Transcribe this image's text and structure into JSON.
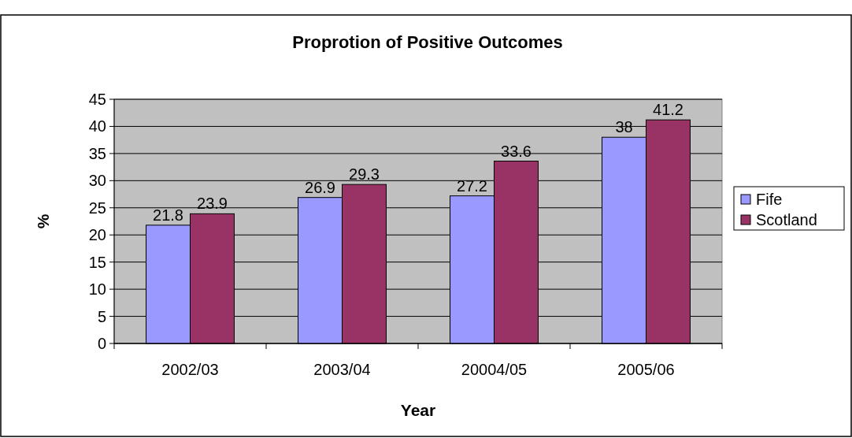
{
  "chart_data": {
    "type": "bar",
    "title": "Proprotion of Positive Outcomes",
    "xlabel": "Year",
    "ylabel": "%",
    "categories": [
      "2002/03",
      "2003/04",
      "20004/05",
      "2005/06"
    ],
    "series": [
      {
        "name": "Fife",
        "color": "#9999ff",
        "values": [
          21.8,
          26.9,
          27.2,
          38
        ]
      },
      {
        "name": "Scotland",
        "color": "#993366",
        "values": [
          23.9,
          29.3,
          33.6,
          41.2
        ]
      }
    ],
    "ylim": [
      0,
      45
    ],
    "yticks": [
      0,
      5,
      10,
      15,
      20,
      25,
      30,
      35,
      40,
      45
    ],
    "grid": "y",
    "legend": "right",
    "data_labels": true
  }
}
